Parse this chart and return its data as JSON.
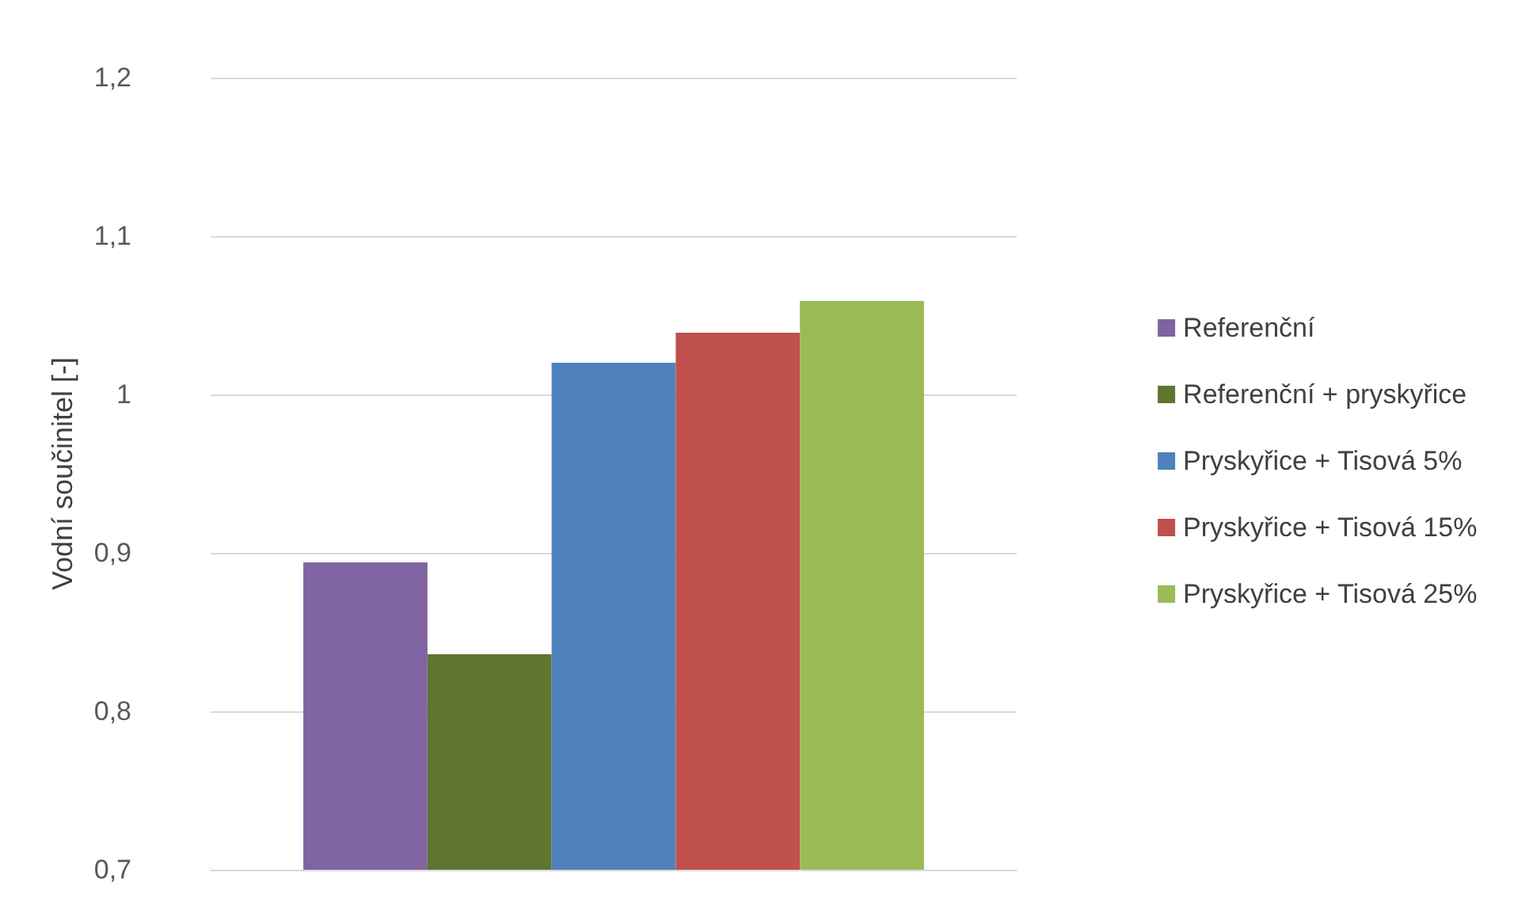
{
  "chart_data": {
    "type": "bar",
    "ylabel": "Vodní součinitel [-]",
    "categories": [
      null
    ],
    "series": [
      {
        "name": "Referenční",
        "color": "#8064a2",
        "values": [
          0.894
        ]
      },
      {
        "name": "Referenční + pryskyřice",
        "color": "#5f7530",
        "values": [
          0.836
        ]
      },
      {
        "name": "Pryskyřice + Tisová 5%",
        "color": "#4f81bd",
        "values": [
          1.02
        ]
      },
      {
        "name": "Pryskyřice + Tisová 15%",
        "color": "#c0504d",
        "values": [
          1.039
        ]
      },
      {
        "name": "Pryskyřice + Tisová 25%",
        "color": "#9bbb59",
        "values": [
          1.059
        ]
      }
    ],
    "ylim": [
      0.7,
      1.2
    ],
    "yticks": [
      {
        "value": 0.7,
        "label": "0,7"
      },
      {
        "value": 0.8,
        "label": "0,8"
      },
      {
        "value": 0.9,
        "label": "0,9"
      },
      {
        "value": 1,
        "label": "1"
      },
      {
        "value": 1.1,
        "label": "1,1"
      },
      {
        "value": 1.2,
        "label": "1,2"
      }
    ],
    "grid": "y",
    "legend": "right"
  }
}
